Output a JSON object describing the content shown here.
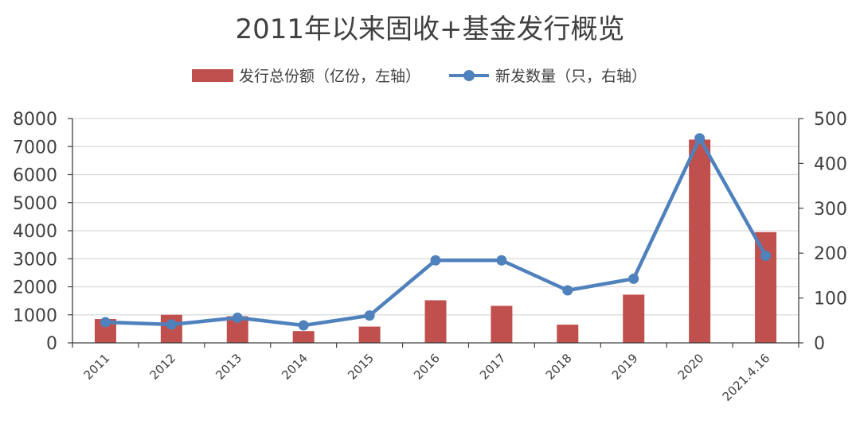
{
  "chart_data": {
    "type": "bar+line",
    "title": "2011年以来固收+基金发行概览",
    "categories": [
      "2011",
      "2012",
      "2013",
      "2014",
      "2015",
      "2016",
      "2017",
      "2018",
      "2019",
      "2020",
      "2021.4.16"
    ],
    "series": [
      {
        "name": "发行总份额（亿份，左轴）",
        "type": "bar",
        "axis": "left",
        "color": "#C0504D",
        "values": [
          850,
          1000,
          950,
          420,
          580,
          1520,
          1320,
          650,
          1720,
          7250,
          3950
        ]
      },
      {
        "name": "新发数量（只，右轴）",
        "type": "line",
        "axis": "right",
        "color": "#4F81BD",
        "values": [
          46,
          41,
          56,
          39,
          61,
          184,
          184,
          117,
          143,
          456,
          194
        ]
      }
    ],
    "y_left": {
      "min": 0,
      "max": 8000,
      "ticks": [
        0,
        1000,
        2000,
        3000,
        4000,
        5000,
        6000,
        7000,
        8000
      ]
    },
    "y_right": {
      "min": 0,
      "max": 500,
      "ticks": [
        0,
        100,
        200,
        300,
        400,
        500
      ]
    },
    "grid": true,
    "legend_position": "top"
  }
}
